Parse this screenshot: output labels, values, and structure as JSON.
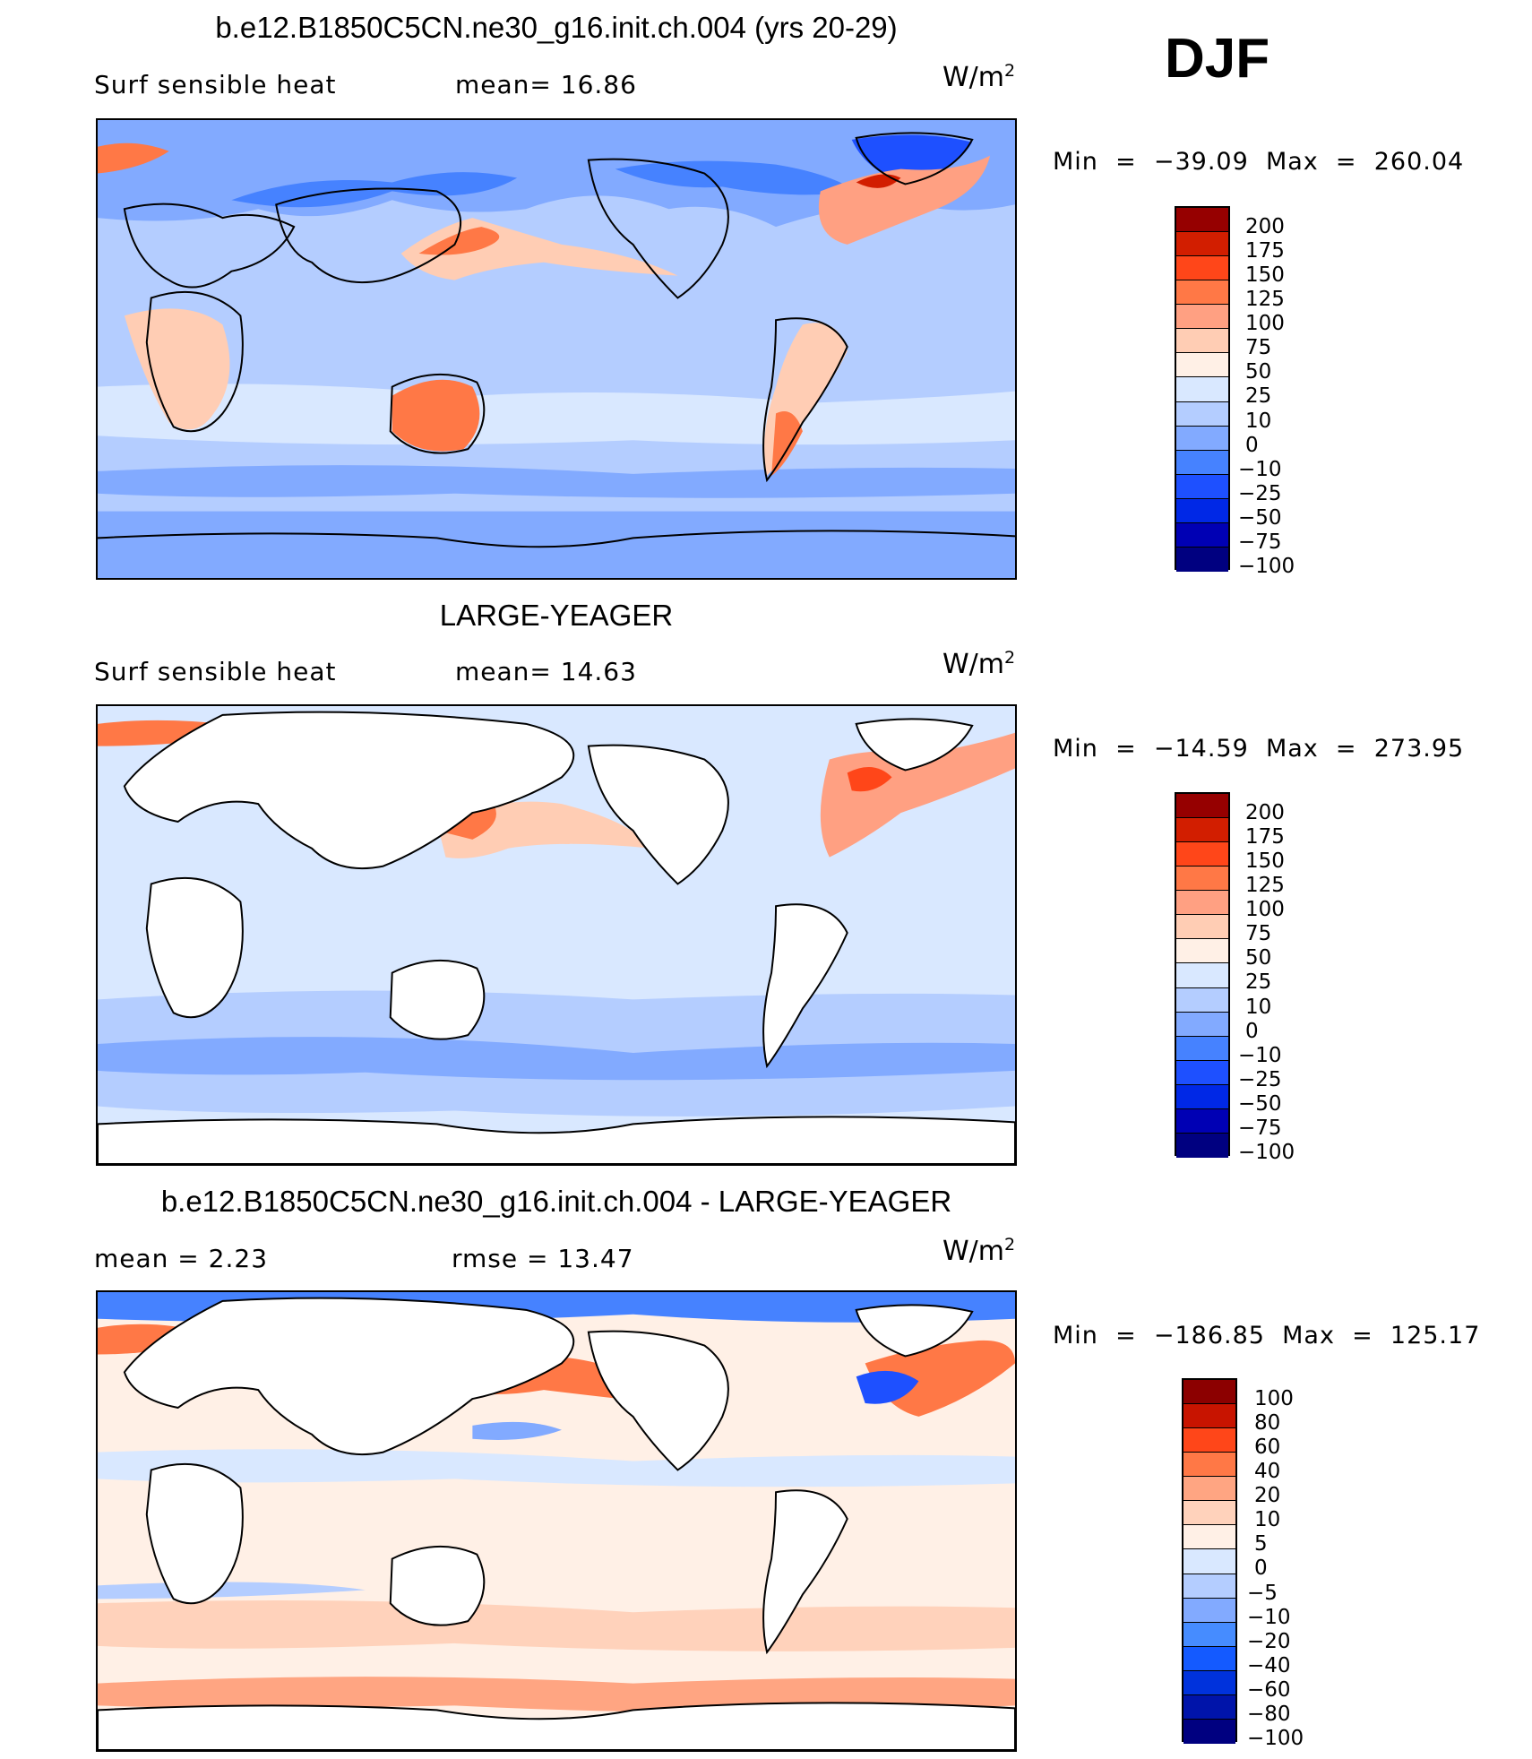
{
  "season": "DJF",
  "colors": {
    "absolute": [
      "#000080",
      "#0000b4",
      "#0028e6",
      "#1e50ff",
      "#4682ff",
      "#82aaff",
      "#b4cdff",
      "#d9e8ff",
      "#fff0e6",
      "#ffcdb4",
      "#ffa082",
      "#ff7846",
      "#ff4619",
      "#d21e00",
      "#960000"
    ],
    "difference": [
      "#000080",
      "#0014aa",
      "#0032dc",
      "#145aff",
      "#468cff",
      "#82aaff",
      "#b4cdff",
      "#d9e8ff",
      "#fff0e6",
      "#ffd2bb",
      "#ffa582",
      "#ff7846",
      "#ff4619",
      "#c81400",
      "#8c0000"
    ]
  },
  "panels": [
    {
      "title": "b.e12.B1850C5CN.ne30_g16.init.ch.004 (yrs 20-29)",
      "left_label": "Surf sensible heat",
      "center_label": "mean=   16.86",
      "units": "W/m",
      "units_exp": "2",
      "minmax": "Min  =  −39.09  Max  =  260.04",
      "colorbar_labels": [
        "200",
        "175",
        "150",
        "125",
        "100",
        "75",
        "50",
        "25",
        "10",
        "0",
        "−10",
        "−25",
        "−50",
        "−75",
        "−100"
      ]
    },
    {
      "title": "LARGE-YEAGER",
      "left_label": "Surf sensible heat",
      "center_label": "mean=   14.63",
      "units": "W/m",
      "units_exp": "2",
      "minmax": "Min  =  −14.59  Max  =  273.95",
      "colorbar_labels": [
        "200",
        "175",
        "150",
        "125",
        "100",
        "75",
        "50",
        "25",
        "10",
        "0",
        "−10",
        "−25",
        "−50",
        "−75",
        "−100"
      ]
    },
    {
      "title": "b.e12.B1850C5CN.ne30_g16.init.ch.004 - LARGE-YEAGER",
      "left_label": "mean =     2.23",
      "center_label": "rmse  =    13.47",
      "units": "W/m",
      "units_exp": "2",
      "minmax": "Min  =  −186.85  Max  =  125.17",
      "colorbar_labels": [
        "100",
        "80",
        "60",
        "40",
        "20",
        "10",
        "5",
        "0",
        "−5",
        "−10",
        "−20",
        "−40",
        "−60",
        "−80",
        "−100"
      ]
    }
  ]
}
